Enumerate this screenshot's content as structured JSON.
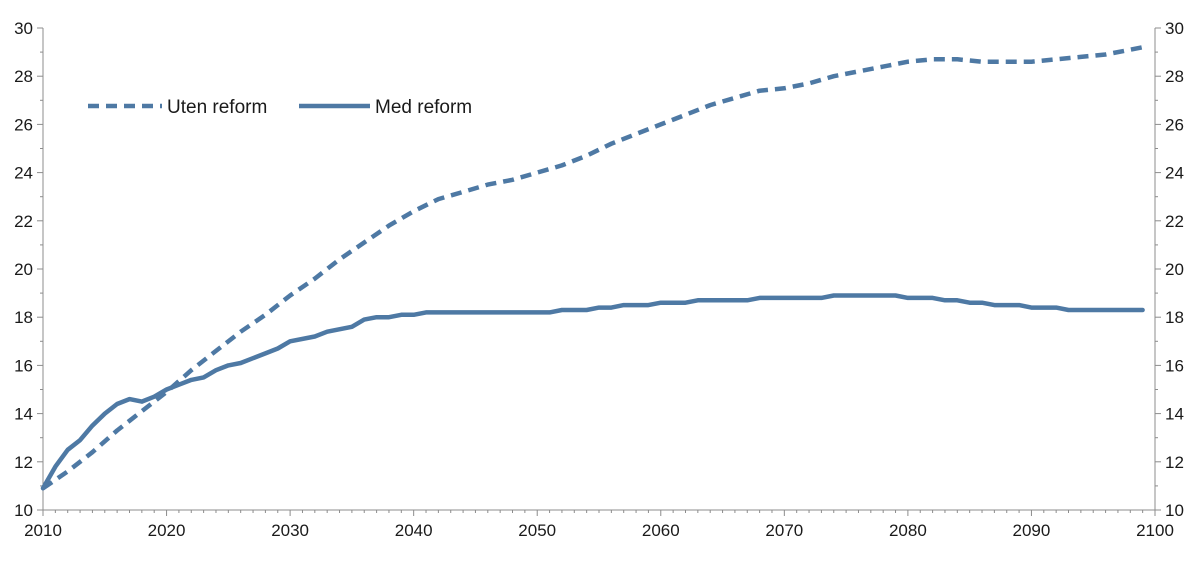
{
  "chart_data": {
    "type": "line",
    "title": "",
    "xlabel": "",
    "ylabel": "",
    "xlim": [
      2010,
      2100
    ],
    "ylim": [
      10,
      30
    ],
    "x_ticks": [
      2010,
      2020,
      2030,
      2040,
      2050,
      2060,
      2070,
      2080,
      2090,
      2100
    ],
    "y_ticks": [
      10,
      12,
      14,
      16,
      18,
      20,
      22,
      24,
      26,
      28,
      30
    ],
    "grid": false,
    "legend_position": "top-left",
    "colors": {
      "series": "#4e79a4",
      "axis": "#8c8c8c"
    },
    "series": [
      {
        "name": "Uten reform",
        "style": "dashed",
        "x": [
          2010,
          2012,
          2014,
          2016,
          2018,
          2020,
          2022,
          2024,
          2026,
          2028,
          2030,
          2032,
          2034,
          2036,
          2038,
          2040,
          2042,
          2044,
          2046,
          2048,
          2050,
          2052,
          2054,
          2056,
          2058,
          2060,
          2062,
          2064,
          2066,
          2068,
          2070,
          2072,
          2074,
          2076,
          2078,
          2080,
          2082,
          2084,
          2086,
          2088,
          2090,
          2092,
          2094,
          2096,
          2098,
          2099
        ],
        "values": [
          10.9,
          11.6,
          12.4,
          13.3,
          14.1,
          14.9,
          15.8,
          16.6,
          17.4,
          18.1,
          18.9,
          19.6,
          20.4,
          21.1,
          21.8,
          22.4,
          22.9,
          23.2,
          23.5,
          23.7,
          24.0,
          24.3,
          24.7,
          25.2,
          25.6,
          26.0,
          26.4,
          26.8,
          27.1,
          27.4,
          27.5,
          27.7,
          28.0,
          28.2,
          28.4,
          28.6,
          28.7,
          28.7,
          28.6,
          28.6,
          28.6,
          28.7,
          28.8,
          28.9,
          29.1,
          29.2
        ]
      },
      {
        "name": "Med reform",
        "style": "solid",
        "x": [
          2010,
          2011,
          2012,
          2013,
          2014,
          2015,
          2016,
          2017,
          2018,
          2019,
          2020,
          2021,
          2022,
          2023,
          2024,
          2025,
          2026,
          2027,
          2028,
          2029,
          2030,
          2032,
          2033,
          2035,
          2036,
          2037,
          2038,
          2039,
          2040,
          2041,
          2045,
          2050,
          2051,
          2052,
          2054,
          2055,
          2056,
          2057,
          2059,
          2060,
          2062,
          2063,
          2065,
          2067,
          2068,
          2070,
          2073,
          2074,
          2078,
          2079,
          2080,
          2082,
          2083,
          2084,
          2085,
          2086,
          2087,
          2089,
          2090,
          2092,
          2093,
          2095,
          2099
        ],
        "values": [
          10.9,
          11.8,
          12.5,
          12.9,
          13.5,
          14.0,
          14.4,
          14.6,
          14.5,
          14.7,
          15.0,
          15.2,
          15.4,
          15.5,
          15.8,
          16.0,
          16.1,
          16.3,
          16.5,
          16.7,
          17.0,
          17.2,
          17.4,
          17.6,
          17.9,
          18.0,
          18.0,
          18.1,
          18.1,
          18.2,
          18.2,
          18.2,
          18.2,
          18.3,
          18.3,
          18.4,
          18.4,
          18.5,
          18.5,
          18.6,
          18.6,
          18.7,
          18.7,
          18.7,
          18.8,
          18.8,
          18.8,
          18.9,
          18.9,
          18.9,
          18.8,
          18.8,
          18.7,
          18.7,
          18.6,
          18.6,
          18.5,
          18.5,
          18.4,
          18.4,
          18.3,
          18.3,
          18.3
        ]
      }
    ]
  }
}
